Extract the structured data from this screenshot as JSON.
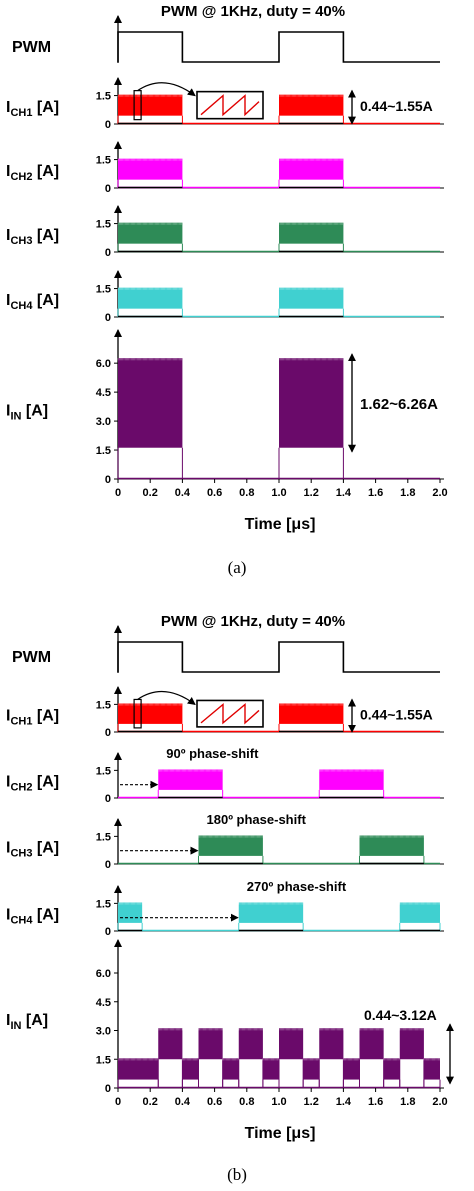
{
  "chart_data": [
    {
      "type": "line",
      "panel": "(a)",
      "caption": "(a)",
      "title": "PWM @ 1KHz, duty = 40%",
      "xlabel": "Time [μs]",
      "x_ticks": [
        "0",
        "0.2",
        "0.4",
        "0.6",
        "0.8",
        "1.0",
        "1.2",
        "1.4",
        "1.6",
        "1.8",
        "2.0"
      ],
      "xlim": [
        0,
        2.0
      ],
      "pwm": {
        "label": "PWM",
        "on_intervals": [
          [
            0,
            0.4
          ],
          [
            1.0,
            1.4
          ]
        ]
      },
      "series": [
        {
          "label_main": "I",
          "label_sub": "CH1",
          "label_unit": " [A]",
          "color": "#ff0000",
          "y_ticks": [
            "1.5",
            "0"
          ],
          "ylim": [
            0,
            1.9
          ],
          "low": 0.44,
          "high": 1.55,
          "on_intervals": [
            [
              0,
              0.4
            ],
            [
              1.0,
              1.4
            ]
          ],
          "annotation": "0.44~1.55A",
          "inset": true
        },
        {
          "label_main": "I",
          "label_sub": "CH2",
          "label_unit": " [A]",
          "color": "#ff00ff",
          "y_ticks": [
            "1.5",
            "0"
          ],
          "ylim": [
            0,
            1.9
          ],
          "low": 0.44,
          "high": 1.55,
          "on_intervals": [
            [
              0,
              0.4
            ],
            [
              1.0,
              1.4
            ]
          ]
        },
        {
          "label_main": "I",
          "label_sub": "CH3",
          "label_unit": " [A]",
          "color": "#2e8b57",
          "y_ticks": [
            "1.5",
            "0"
          ],
          "ylim": [
            0,
            1.9
          ],
          "low": 0.44,
          "high": 1.55,
          "on_intervals": [
            [
              0,
              0.4
            ],
            [
              1.0,
              1.4
            ]
          ]
        },
        {
          "label_main": "I",
          "label_sub": "CH4",
          "label_unit": " [A]",
          "color": "#40d0d0",
          "y_ticks": [
            "1.5",
            "0"
          ],
          "ylim": [
            0,
            1.9
          ],
          "low": 0.44,
          "high": 1.55,
          "on_intervals": [
            [
              0,
              0.4
            ],
            [
              1.0,
              1.4
            ]
          ]
        }
      ],
      "input": {
        "label_main": "I",
        "label_sub": "IN",
        "label_unit": " [A]",
        "color": "#6a0a6a",
        "y_ticks": [
          "6.0",
          "4.5",
          "3.0",
          "1.5",
          "0"
        ],
        "ylim": [
          0,
          7.2
        ],
        "low": 1.62,
        "high": 6.26,
        "on_intervals": [
          [
            0,
            0.4
          ],
          [
            1.0,
            1.4
          ]
        ],
        "annotation": "1.62~6.26A"
      }
    },
    {
      "type": "line",
      "panel": "(b)",
      "caption": "(b)",
      "title": "PWM @ 1KHz, duty = 40%",
      "xlabel": "Time [μs]",
      "x_ticks": [
        "0",
        "0.2",
        "0.4",
        "0.6",
        "0.8",
        "1.0",
        "1.2",
        "1.4",
        "1.6",
        "1.8",
        "2.0"
      ],
      "xlim": [
        0,
        2.0
      ],
      "pwm": {
        "label": "PWM",
        "on_intervals": [
          [
            0,
            0.4
          ],
          [
            1.0,
            1.4
          ]
        ]
      },
      "series": [
        {
          "label_main": "I",
          "label_sub": "CH1",
          "label_unit": " [A]",
          "color": "#ff0000",
          "y_ticks": [
            "1.5",
            "0"
          ],
          "ylim": [
            0,
            1.9
          ],
          "low": 0.44,
          "high": 1.55,
          "on_intervals": [
            [
              0,
              0.4
            ],
            [
              1.0,
              1.4
            ]
          ],
          "annotation": "0.44~1.55A",
          "inset": true
        },
        {
          "label_main": "I",
          "label_sub": "CH2",
          "label_unit": " [A]",
          "color": "#ff00ff",
          "y_ticks": [
            "1.5",
            "0"
          ],
          "ylim": [
            0,
            1.9
          ],
          "low": 0.44,
          "high": 1.55,
          "on_intervals": [
            [
              0.25,
              0.65
            ],
            [
              1.25,
              1.65
            ]
          ],
          "phase_label": "90º phase-shift",
          "shift_to": 0.25
        },
        {
          "label_main": "I",
          "label_sub": "CH3",
          "label_unit": " [A]",
          "color": "#2e8b57",
          "y_ticks": [
            "1.5",
            "0"
          ],
          "ylim": [
            0,
            1.9
          ],
          "low": 0.44,
          "high": 1.55,
          "on_intervals": [
            [
              0.5,
              0.9
            ],
            [
              1.5,
              1.9
            ]
          ],
          "phase_label": "180º phase-shift",
          "shift_to": 0.5
        },
        {
          "label_main": "I",
          "label_sub": "CH4",
          "label_unit": " [A]",
          "color": "#40d0d0",
          "y_ticks": [
            "1.5",
            "0"
          ],
          "ylim": [
            0,
            1.9
          ],
          "low": 0.44,
          "high": 1.55,
          "on_intervals": [
            [
              0,
              0.15
            ],
            [
              0.75,
              1.15
            ],
            [
              1.75,
              2.0
            ]
          ],
          "phase_label": "270º phase-shift",
          "shift_to": 0.75
        }
      ],
      "input": {
        "label_main": "I",
        "label_sub": "IN",
        "label_unit": " [A]",
        "color": "#6a0a6a",
        "y_ticks": [
          "6.0",
          "4.5",
          "3.0",
          "1.5",
          "0"
        ],
        "ylim": [
          0,
          7.2
        ],
        "annotation": "0.44~3.12A",
        "segments": [
          {
            "x0": 0,
            "x1": 0.25,
            "low": 0.44,
            "high": 1.55
          },
          {
            "x0": 0.25,
            "x1": 0.4,
            "low": 1.5,
            "high": 3.12
          },
          {
            "x0": 0.4,
            "x1": 0.5,
            "low": 0.44,
            "high": 1.55
          },
          {
            "x0": 0.5,
            "x1": 0.65,
            "low": 1.5,
            "high": 3.12
          },
          {
            "x0": 0.65,
            "x1": 0.75,
            "low": 0.44,
            "high": 1.55
          },
          {
            "x0": 0.75,
            "x1": 0.9,
            "low": 1.5,
            "high": 3.12
          },
          {
            "x0": 0.9,
            "x1": 1.0,
            "low": 0.44,
            "high": 1.55
          },
          {
            "x0": 1.0,
            "x1": 1.15,
            "low": 1.5,
            "high": 3.12
          },
          {
            "x0": 1.15,
            "x1": 1.25,
            "low": 0.44,
            "high": 1.55
          },
          {
            "x0": 1.25,
            "x1": 1.4,
            "low": 1.5,
            "high": 3.12
          },
          {
            "x0": 1.4,
            "x1": 1.5,
            "low": 0.44,
            "high": 1.55
          },
          {
            "x0": 1.5,
            "x1": 1.65,
            "low": 1.5,
            "high": 3.12
          },
          {
            "x0": 1.65,
            "x1": 1.75,
            "low": 0.44,
            "high": 1.55
          },
          {
            "x0": 1.75,
            "x1": 1.9,
            "low": 1.5,
            "high": 3.12
          },
          {
            "x0": 1.9,
            "x1": 2.0,
            "low": 0.44,
            "high": 1.55
          }
        ]
      }
    }
  ]
}
